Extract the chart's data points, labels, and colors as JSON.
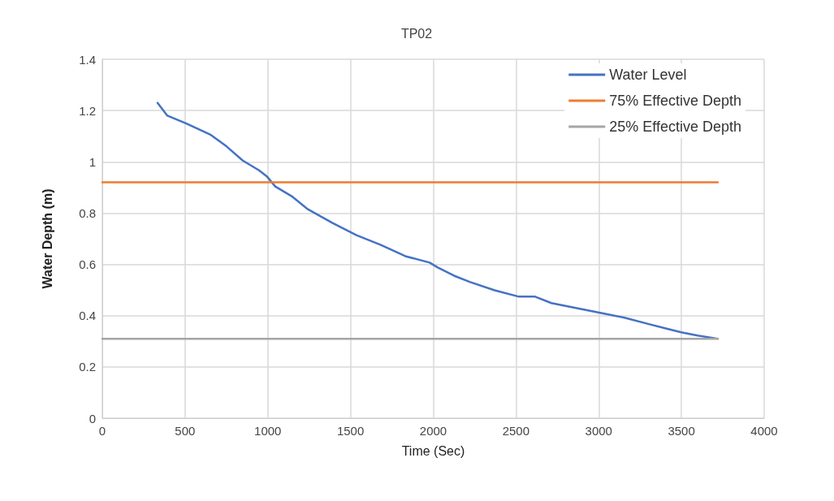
{
  "chart_data": {
    "type": "line",
    "title": "TP02",
    "xlabel": "Time (Sec)",
    "ylabel": "Water Depth (m)",
    "xlim": [
      0,
      4000
    ],
    "xticks": [
      0,
      500,
      1000,
      1500,
      2000,
      2500,
      3000,
      3500,
      4000
    ],
    "ylim": [
      0,
      1.4
    ],
    "yticks": [
      0,
      0.2,
      0.4,
      0.6,
      0.8,
      1,
      1.2,
      1.4
    ],
    "grid": true,
    "legend": "top right",
    "marker": "none",
    "line_style": "solid",
    "series": [
      {
        "name": "Water Level",
        "color": "#4472c4",
        "x": [
          334,
          393,
          505,
          653,
          751,
          849,
          947,
          996,
          1045,
          1144,
          1242,
          1389,
          1536,
          1683,
          1831,
          1978,
          2027,
          2125,
          2223,
          2371,
          2518,
          2616,
          2714,
          2861,
          3009,
          3156,
          3303,
          3401,
          3499,
          3598,
          3720
        ],
        "values": [
          1.23,
          1.18,
          1.15,
          1.106,
          1.06,
          1.005,
          0.967,
          0.942,
          0.904,
          0.866,
          0.815,
          0.762,
          0.714,
          0.676,
          0.632,
          0.607,
          0.588,
          0.556,
          0.531,
          0.499,
          0.474,
          0.474,
          0.449,
          0.43,
          0.411,
          0.392,
          0.367,
          0.351,
          0.335,
          0.322,
          0.31
        ]
      },
      {
        "name": "75% Effective Depth",
        "color": "#ed7d31",
        "x": [
          0,
          3720
        ],
        "values": [
          0.92,
          0.92
        ]
      },
      {
        "name": "25% Effective Depth",
        "color": "#a5a5a5",
        "x": [
          0,
          3720
        ],
        "values": [
          0.31,
          0.31
        ]
      }
    ]
  }
}
